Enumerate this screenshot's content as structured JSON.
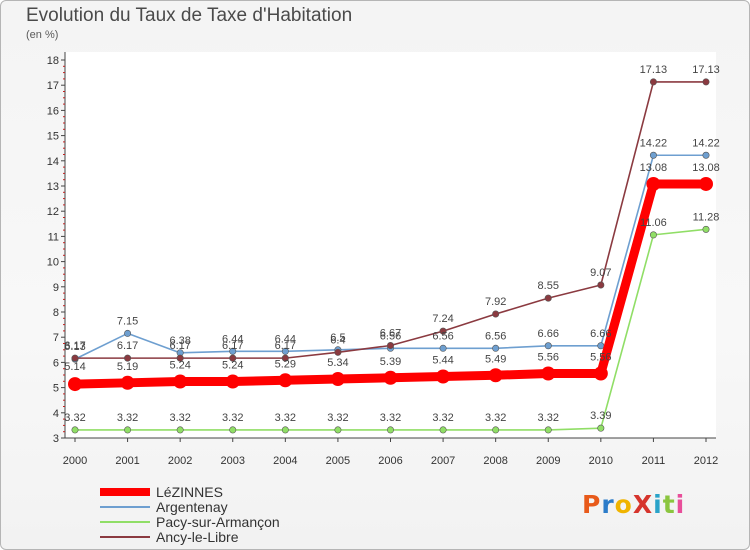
{
  "title": "Evolution du Taux de Taxe d'Habitation",
  "unit_label": "(en %)",
  "logo": {
    "text": "ProXiti",
    "colors": [
      "#e85a1a",
      "#2c7cc9",
      "#f0b400",
      "#d6342c",
      "#2aa3c9",
      "#8bc53f",
      "#e84e9a"
    ]
  },
  "chart_data": {
    "type": "line",
    "x": [
      "2000",
      "2001",
      "2002",
      "2003",
      "2004",
      "2005",
      "2006",
      "2007",
      "2008",
      "2009",
      "2010",
      "2011",
      "2012"
    ],
    "ylim": [
      3,
      18
    ],
    "yticks": [
      3,
      4,
      5,
      6,
      7,
      8,
      9,
      10,
      11,
      12,
      13,
      14,
      15,
      16,
      17,
      18
    ],
    "grid": false,
    "series": [
      {
        "name": "LéZINNES",
        "color": "#ff0000",
        "thick": true,
        "values": [
          5.14,
          5.19,
          5.24,
          5.24,
          5.29,
          5.34,
          5.39,
          5.44,
          5.49,
          5.56,
          5.56,
          13.08,
          13.08
        ],
        "labels": [
          "5.14",
          "5.19",
          "5.24",
          "5.24",
          "5.29",
          "5.34",
          "5.39",
          "5.44",
          "5.49",
          "5.56",
          "5.56",
          "13.08",
          "13.08"
        ]
      },
      {
        "name": "Argentenay",
        "color": "#6e9fd0",
        "thick": false,
        "values": [
          6.13,
          7.15,
          6.38,
          6.44,
          6.44,
          6.5,
          6.56,
          6.56,
          6.56,
          6.66,
          6.66,
          14.22,
          14.22
        ],
        "labels": [
          "6.13",
          "7.15",
          "6.38",
          "6.44",
          "6.44",
          "6.5",
          "6.56",
          "6.56",
          "6.56",
          "6.66",
          "6.66",
          "14.22",
          "14.22"
        ]
      },
      {
        "name": "Pacy-sur-Armançon",
        "color": "#90de66",
        "thick": false,
        "values": [
          3.32,
          3.32,
          3.32,
          3.32,
          3.32,
          3.32,
          3.32,
          3.32,
          3.32,
          3.32,
          3.39,
          11.06,
          11.28
        ],
        "labels": [
          "3.32",
          "3.32",
          "3.32",
          "3.32",
          "3.32",
          "3.32",
          "3.32",
          "3.32",
          "3.32",
          "3.32",
          "3.39",
          "11.06",
          "11.28"
        ]
      },
      {
        "name": "Ancy-le-Libre",
        "color": "#8b3a40",
        "thick": false,
        "values": [
          6.17,
          6.17,
          6.17,
          6.17,
          6.17,
          6.4,
          6.67,
          7.24,
          7.92,
          8.55,
          9.07,
          17.13,
          17.13
        ],
        "labels": [
          "6.17",
          "6.17",
          "6.17",
          "6.17",
          "6.17",
          "6.4",
          "6.67",
          "7.24",
          "7.92",
          "8.55",
          "9.07",
          "17.13",
          "17.13"
        ]
      }
    ]
  }
}
